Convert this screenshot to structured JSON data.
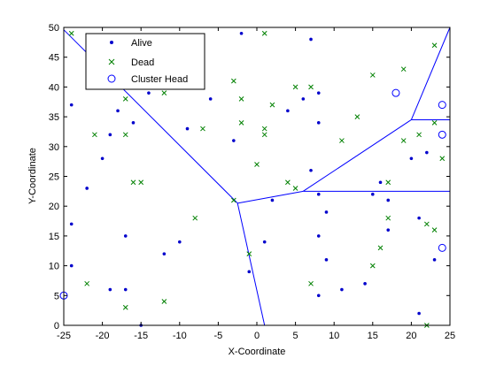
{
  "chart_data": {
    "type": "scatter",
    "title": "",
    "xlabel": "X-Coordinate",
    "ylabel": "Y-Coordinate",
    "xlim": [
      -25,
      25
    ],
    "ylim": [
      0,
      50
    ],
    "xticks": [
      -25,
      -20,
      -15,
      -10,
      -5,
      0,
      5,
      10,
      15,
      20,
      25
    ],
    "yticks": [
      0,
      5,
      10,
      15,
      20,
      25,
      30,
      35,
      40,
      45,
      50
    ],
    "grid": false,
    "legend_position": "top-left",
    "legend": [
      "Alive",
      "Dead",
      "Cluster Head"
    ],
    "colors": {
      "alive": "#0000cc",
      "dead": "#008000",
      "cluster_head": "#0000ff",
      "boundary": "#0000ff"
    },
    "series": [
      {
        "name": "Alive",
        "marker": "dot",
        "points": [
          [
            -24,
            37
          ],
          [
            -24,
            17
          ],
          [
            -24,
            10
          ],
          [
            -22,
            23
          ],
          [
            -20,
            28
          ],
          [
            -19,
            32
          ],
          [
            -19,
            6
          ],
          [
            -18,
            36
          ],
          [
            -17,
            15
          ],
          [
            -17,
            6
          ],
          [
            -16,
            34
          ],
          [
            -15,
            0
          ],
          [
            -14,
            39
          ],
          [
            -12,
            12
          ],
          [
            -10,
            14
          ],
          [
            -9,
            33
          ],
          [
            -6,
            38
          ],
          [
            -3,
            31
          ],
          [
            -2,
            49
          ],
          [
            -1,
            9
          ],
          [
            1,
            14
          ],
          [
            2,
            21
          ],
          [
            4,
            36
          ],
          [
            6,
            38
          ],
          [
            7,
            48
          ],
          [
            8,
            39
          ],
          [
            8,
            34
          ],
          [
            8,
            22
          ],
          [
            8,
            15
          ],
          [
            8,
            5
          ],
          [
            9,
            19
          ],
          [
            9,
            11
          ],
          [
            11,
            6
          ],
          [
            14,
            7
          ],
          [
            15,
            22
          ],
          [
            16,
            24
          ],
          [
            17,
            21
          ],
          [
            17,
            16
          ],
          [
            20,
            28
          ],
          [
            21,
            2
          ],
          [
            21,
            18
          ],
          [
            22,
            29
          ],
          [
            23,
            11
          ],
          [
            7,
            26
          ]
        ]
      },
      {
        "name": "Dead",
        "marker": "x",
        "points": [
          [
            -24,
            49
          ],
          [
            -22,
            7
          ],
          [
            -21,
            32
          ],
          [
            -17,
            38
          ],
          [
            -17,
            32
          ],
          [
            -17,
            3
          ],
          [
            -16,
            24
          ],
          [
            -15,
            24
          ],
          [
            -12,
            39
          ],
          [
            -12,
            4
          ],
          [
            -8,
            18
          ],
          [
            -7,
            33
          ],
          [
            -3,
            41
          ],
          [
            -2,
            38
          ],
          [
            -2,
            34
          ],
          [
            -3,
            21
          ],
          [
            -1,
            12
          ],
          [
            0,
            27
          ],
          [
            1,
            49
          ],
          [
            1,
            33
          ],
          [
            1,
            32
          ],
          [
            2,
            37
          ],
          [
            4,
            24
          ],
          [
            5,
            40
          ],
          [
            5,
            23
          ],
          [
            7,
            40
          ],
          [
            7,
            7
          ],
          [
            11,
            31
          ],
          [
            13,
            35
          ],
          [
            15,
            42
          ],
          [
            15,
            10
          ],
          [
            16,
            13
          ],
          [
            17,
            24
          ],
          [
            17,
            18
          ],
          [
            19,
            43
          ],
          [
            19,
            31
          ],
          [
            21,
            32
          ],
          [
            22,
            17
          ],
          [
            22,
            0
          ],
          [
            23,
            47
          ],
          [
            23,
            34
          ],
          [
            23,
            16
          ],
          [
            24,
            28
          ]
        ]
      },
      {
        "name": "Cluster Head",
        "marker": "circle",
        "points": [
          [
            18,
            39
          ],
          [
            24,
            37
          ],
          [
            24,
            32
          ],
          [
            24,
            13
          ],
          [
            -25,
            5
          ]
        ]
      }
    ],
    "boundaries": [
      [
        [
          -25,
          49.6
        ],
        [
          -2.5,
          20.5
        ]
      ],
      [
        [
          -2.5,
          20.5
        ],
        [
          1,
          0
        ]
      ],
      [
        [
          -2.5,
          20.5
        ],
        [
          6,
          22.5
        ]
      ],
      [
        [
          6,
          22.5
        ],
        [
          25,
          22.5
        ]
      ],
      [
        [
          6,
          22.5
        ],
        [
          20,
          34.5
        ]
      ],
      [
        [
          20,
          34.5
        ],
        [
          25,
          34.5
        ]
      ],
      [
        [
          20,
          34.5
        ],
        [
          25,
          50
        ]
      ]
    ]
  }
}
